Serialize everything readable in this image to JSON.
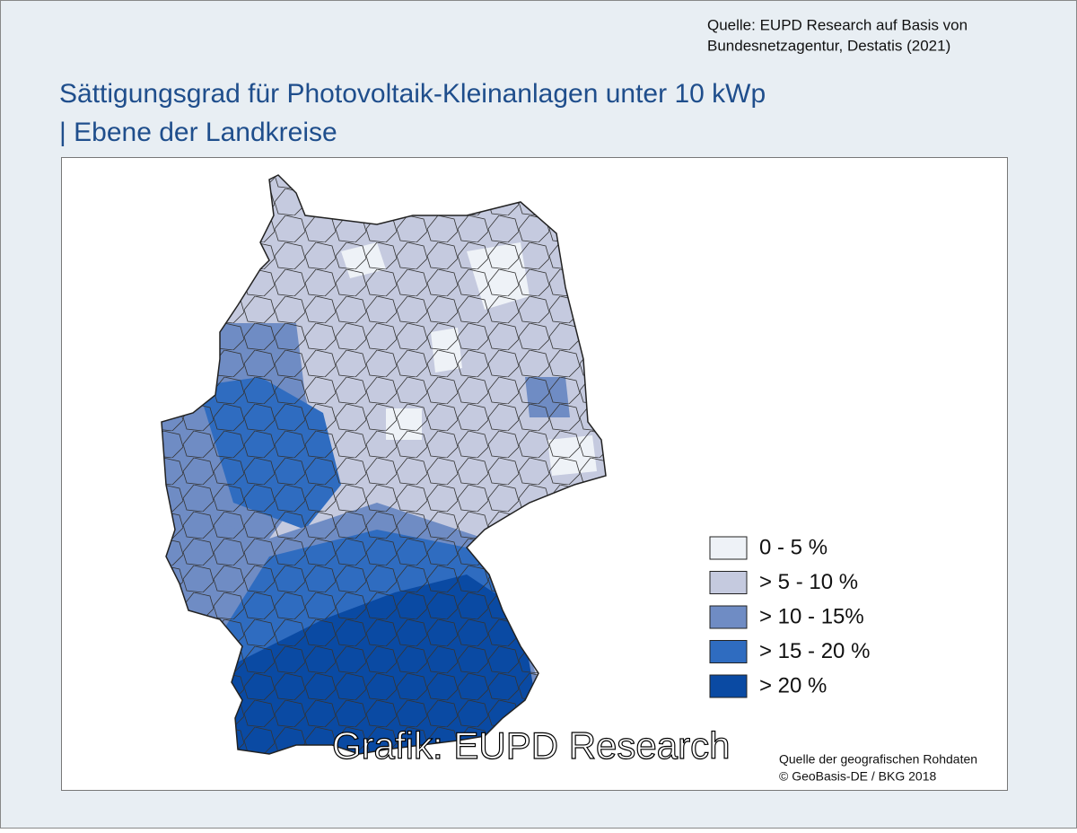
{
  "source": {
    "line1": "Quelle: EUPD Research auf Basis von",
    "line2": "Bundesnetzagentur, Destatis (2021)"
  },
  "title": {
    "line1": "Sättigungsgrad für Photovoltaik-Kleinanlagen unter 10 kWp",
    "line2": "| Ebene der Landkreise"
  },
  "legend": [
    {
      "label": "0 - 5 %",
      "color": "#eef2f7"
    },
    {
      "label": "> 5 - 10 %",
      "color": "#c5cadf"
    },
    {
      "label": "> 10 - 15%",
      "color": "#6f8cc4"
    },
    {
      "label": "> 15 - 20 %",
      "color": "#2f6cc0"
    },
    {
      "label": "> 20 %",
      "color": "#0a4aa3"
    }
  ],
  "watermark": "Grafik: EUPD Research",
  "geo_source": {
    "line1": "Quelle der geografischen Rohdaten",
    "line2": "© GeoBasis-DE / BKG 2018"
  }
}
